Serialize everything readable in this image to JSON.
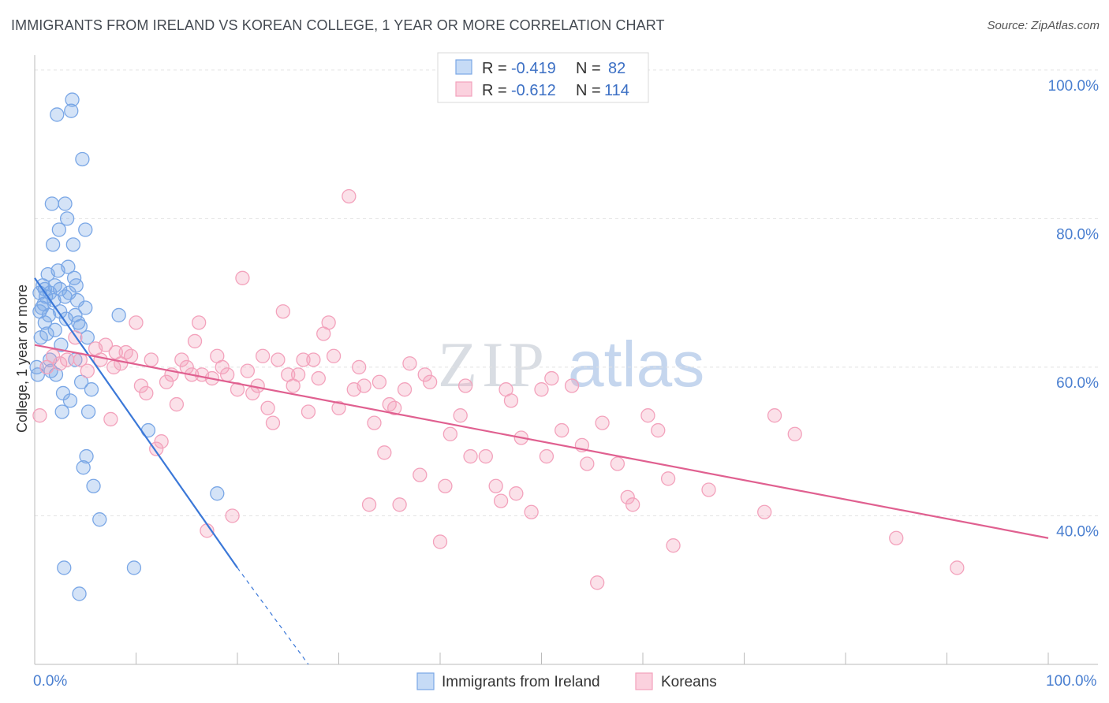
{
  "header": {
    "title": "IMMIGRANTS FROM IRELAND VS KOREAN COLLEGE, 1 YEAR OR MORE CORRELATION CHART",
    "source": "Source: ZipAtlas.com"
  },
  "watermark": {
    "zip": "ZIP",
    "atlas": "atlas"
  },
  "legend": {
    "r_label": "R =",
    "n_label": "N =",
    "rows": [
      {
        "r": "-0.419",
        "n": "82"
      },
      {
        "r": "-0.612",
        "n": "114"
      }
    ]
  },
  "chart_data": {
    "type": "scatter",
    "title": "IMMIGRANTS FROM IRELAND VS KOREAN COLLEGE, 1 YEAR OR MORE CORRELATION CHART",
    "xlabel": "",
    "ylabel": "College, 1 year or more",
    "xlim": [
      0,
      100
    ],
    "ylim": [
      20,
      102
    ],
    "x_tick_labels": [
      "0.0%",
      "100.0%"
    ],
    "y_ticks": [
      40,
      60,
      80,
      100
    ],
    "y_tick_labels": [
      "40.0%",
      "60.0%",
      "80.0%",
      "100.0%"
    ],
    "grid": true,
    "legend_position": "top-center",
    "series": [
      {
        "name": "Immigrants from Ireland",
        "color": "#7aa7e6",
        "line_color": "#3b78d8",
        "r": -0.419,
        "n": 82,
        "trend": {
          "x0": 0.0,
          "y0": 72.0,
          "x1": 20.0,
          "y1": 33.0,
          "dash_to_x": 27.0,
          "dash_to_y": 20.0
        },
        "points": [
          [
            0.2,
            60.0
          ],
          [
            0.3,
            59.0
          ],
          [
            0.5,
            70.0
          ],
          [
            0.5,
            67.5
          ],
          [
            0.6,
            64.0
          ],
          [
            0.7,
            68.0
          ],
          [
            0.8,
            71.0
          ],
          [
            0.9,
            68.5
          ],
          [
            1.0,
            70.5
          ],
          [
            1.0,
            66.0
          ],
          [
            1.1,
            69.5
          ],
          [
            1.2,
            64.5
          ],
          [
            1.3,
            72.5
          ],
          [
            1.4,
            67.0
          ],
          [
            1.5,
            70.0
          ],
          [
            1.5,
            61.0
          ],
          [
            1.6,
            59.5
          ],
          [
            1.7,
            82.0
          ],
          [
            1.8,
            76.5
          ],
          [
            1.9,
            69.0
          ],
          [
            2.0,
            71.0
          ],
          [
            2.0,
            65.0
          ],
          [
            2.1,
            59.0
          ],
          [
            2.2,
            94.0
          ],
          [
            2.3,
            73.0
          ],
          [
            2.4,
            78.5
          ],
          [
            2.5,
            70.5
          ],
          [
            2.5,
            67.5
          ],
          [
            2.6,
            63.0
          ],
          [
            2.7,
            54.0
          ],
          [
            2.8,
            56.5
          ],
          [
            2.9,
            33.0
          ],
          [
            3.0,
            82.0
          ],
          [
            3.0,
            69.5
          ],
          [
            3.1,
            66.5
          ],
          [
            3.2,
            80.0
          ],
          [
            3.3,
            73.5
          ],
          [
            3.4,
            70.0
          ],
          [
            3.5,
            55.5
          ],
          [
            3.6,
            94.5
          ],
          [
            3.7,
            96.0
          ],
          [
            3.8,
            76.5
          ],
          [
            3.9,
            72.0
          ],
          [
            4.0,
            67.0
          ],
          [
            4.0,
            61.0
          ],
          [
            4.1,
            71.0
          ],
          [
            4.2,
            69.0
          ],
          [
            4.3,
            66.0
          ],
          [
            4.4,
            29.5
          ],
          [
            4.5,
            65.5
          ],
          [
            4.6,
            58.0
          ],
          [
            4.7,
            88.0
          ],
          [
            4.8,
            46.5
          ],
          [
            5.0,
            78.5
          ],
          [
            5.0,
            68.0
          ],
          [
            5.1,
            48.0
          ],
          [
            5.2,
            64.0
          ],
          [
            5.3,
            54.0
          ],
          [
            5.6,
            57.0
          ],
          [
            5.8,
            44.0
          ],
          [
            6.4,
            39.5
          ],
          [
            8.3,
            67.0
          ],
          [
            9.8,
            33.0
          ],
          [
            11.2,
            51.5
          ],
          [
            18.0,
            43.0
          ]
        ]
      },
      {
        "name": "Koreans",
        "color": "#f3a2bc",
        "line_color": "#e06090",
        "r": -0.612,
        "n": 114,
        "trend": {
          "x0": 0.0,
          "y0": 63.0,
          "x1": 100.0,
          "y1": 37.0
        },
        "points": [
          [
            0.5,
            53.5
          ],
          [
            1.2,
            60.0
          ],
          [
            1.8,
            61.5
          ],
          [
            2.5,
            60.5
          ],
          [
            3.2,
            61.0
          ],
          [
            4.0,
            64.0
          ],
          [
            4.5,
            61.0
          ],
          [
            5.2,
            59.5
          ],
          [
            6.0,
            62.5
          ],
          [
            6.5,
            61.0
          ],
          [
            7.0,
            63.0
          ],
          [
            7.5,
            53.0
          ],
          [
            7.8,
            60.0
          ],
          [
            8.0,
            62.0
          ],
          [
            8.5,
            60.5
          ],
          [
            9.0,
            62.0
          ],
          [
            9.5,
            61.5
          ],
          [
            10.0,
            66.0
          ],
          [
            10.5,
            57.5
          ],
          [
            11.0,
            56.5
          ],
          [
            11.5,
            61.0
          ],
          [
            12.0,
            49.0
          ],
          [
            12.5,
            50.0
          ],
          [
            13.0,
            58.0
          ],
          [
            13.5,
            59.0
          ],
          [
            14.0,
            55.0
          ],
          [
            14.5,
            61.0
          ],
          [
            15.0,
            60.0
          ],
          [
            15.5,
            59.0
          ],
          [
            15.8,
            63.5
          ],
          [
            16.2,
            66.0
          ],
          [
            16.5,
            59.0
          ],
          [
            17.0,
            38.0
          ],
          [
            17.5,
            58.5
          ],
          [
            18.0,
            61.5
          ],
          [
            18.5,
            60.0
          ],
          [
            19.0,
            59.0
          ],
          [
            19.5,
            40.0
          ],
          [
            20.0,
            57.0
          ],
          [
            20.5,
            72.0
          ],
          [
            21.0,
            59.5
          ],
          [
            21.5,
            56.5
          ],
          [
            22.0,
            57.5
          ],
          [
            22.5,
            61.5
          ],
          [
            23.0,
            54.5
          ],
          [
            23.5,
            52.5
          ],
          [
            24.0,
            61.0
          ],
          [
            24.5,
            67.5
          ],
          [
            25.0,
            59.0
          ],
          [
            25.5,
            57.5
          ],
          [
            26.0,
            59.0
          ],
          [
            26.5,
            61.0
          ],
          [
            27.0,
            54.0
          ],
          [
            27.5,
            61.0
          ],
          [
            28.0,
            58.5
          ],
          [
            28.5,
            64.5
          ],
          [
            29.0,
            66.0
          ],
          [
            29.5,
            61.5
          ],
          [
            30.0,
            54.5
          ],
          [
            31.0,
            83.0
          ],
          [
            31.5,
            57.0
          ],
          [
            32.0,
            60.0
          ],
          [
            32.5,
            57.5
          ],
          [
            33.0,
            41.5
          ],
          [
            33.5,
            52.5
          ],
          [
            34.0,
            58.0
          ],
          [
            34.5,
            48.5
          ],
          [
            35.0,
            55.0
          ],
          [
            35.5,
            54.5
          ],
          [
            36.0,
            41.5
          ],
          [
            36.5,
            57.0
          ],
          [
            37.0,
            60.5
          ],
          [
            38.0,
            45.5
          ],
          [
            38.5,
            59.0
          ],
          [
            39.0,
            58.0
          ],
          [
            40.0,
            36.5
          ],
          [
            40.5,
            44.0
          ],
          [
            41.0,
            51.0
          ],
          [
            42.0,
            53.5
          ],
          [
            42.5,
            57.5
          ],
          [
            43.0,
            48.0
          ],
          [
            44.5,
            48.0
          ],
          [
            45.5,
            44.0
          ],
          [
            46.0,
            42.0
          ],
          [
            46.5,
            57.0
          ],
          [
            47.0,
            55.5
          ],
          [
            47.5,
            43.0
          ],
          [
            48.0,
            50.5
          ],
          [
            49.0,
            40.5
          ],
          [
            50.0,
            57.0
          ],
          [
            50.5,
            48.0
          ],
          [
            51.0,
            58.5
          ],
          [
            52.0,
            51.5
          ],
          [
            53.0,
            57.5
          ],
          [
            54.0,
            49.5
          ],
          [
            54.5,
            47.0
          ],
          [
            55.5,
            31.0
          ],
          [
            56.0,
            52.5
          ],
          [
            57.5,
            47.0
          ],
          [
            58.5,
            42.5
          ],
          [
            59.0,
            41.5
          ],
          [
            60.5,
            53.5
          ],
          [
            61.5,
            51.5
          ],
          [
            62.5,
            45.0
          ],
          [
            63.0,
            36.0
          ],
          [
            66.5,
            43.5
          ],
          [
            72.0,
            40.5
          ],
          [
            73.0,
            53.5
          ],
          [
            75.0,
            51.0
          ],
          [
            85.0,
            37.0
          ],
          [
            91.0,
            33.0
          ]
        ]
      }
    ]
  },
  "bottom_legend": {
    "items": [
      "Immigrants from Ireland",
      "Koreans"
    ]
  }
}
